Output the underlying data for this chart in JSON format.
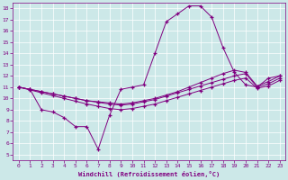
{
  "xlabel": "Windchill (Refroidissement éolien,°C)",
  "bg_color": "#cce8e8",
  "grid_color": "#ffffff",
  "line_color": "#800080",
  "xlim": [
    -0.5,
    23.5
  ],
  "ylim": [
    4.5,
    18.5
  ],
  "xticks": [
    0,
    1,
    2,
    3,
    4,
    5,
    6,
    7,
    8,
    9,
    10,
    11,
    12,
    13,
    14,
    15,
    16,
    17,
    18,
    19,
    20,
    21,
    22,
    23
  ],
  "yticks": [
    5,
    6,
    7,
    8,
    9,
    10,
    11,
    12,
    13,
    14,
    15,
    16,
    17,
    18
  ],
  "loop_x": [
    0,
    1,
    2,
    3,
    4,
    5,
    6,
    7,
    8,
    9,
    10,
    11,
    12,
    13,
    14,
    15,
    16,
    17,
    18,
    19,
    20,
    21,
    22,
    23
  ],
  "loop_y": [
    11,
    10.8,
    9.0,
    8.8,
    8.3,
    7.5,
    7.5,
    5.5,
    8.5,
    10.8,
    11.0,
    11.2,
    14.0,
    16.8,
    17.5,
    18.2,
    18.2,
    17.2,
    14.5,
    12.3,
    11.2,
    11.0,
    11.8,
    12.0
  ],
  "line1_x": [
    0,
    1,
    2,
    3,
    4,
    5,
    6,
    7,
    8,
    9,
    10,
    11,
    12,
    13,
    14,
    15,
    16,
    17,
    18,
    19,
    20,
    21,
    22,
    23
  ],
  "line1_y": [
    11.0,
    10.8,
    10.6,
    10.4,
    10.2,
    10.0,
    9.8,
    9.7,
    9.6,
    9.5,
    9.6,
    9.8,
    10.0,
    10.3,
    10.6,
    11.0,
    11.4,
    11.8,
    12.2,
    12.5,
    12.3,
    11.1,
    11.5,
    12.0
  ],
  "line2_x": [
    0,
    1,
    2,
    3,
    4,
    5,
    6,
    7,
    8,
    9,
    10,
    11,
    12,
    13,
    14,
    15,
    16,
    17,
    18,
    19,
    20,
    21,
    22,
    23
  ],
  "line2_y": [
    11.0,
    10.8,
    10.6,
    10.4,
    10.2,
    10.0,
    9.8,
    9.65,
    9.5,
    9.4,
    9.5,
    9.7,
    9.9,
    10.2,
    10.5,
    10.8,
    11.1,
    11.4,
    11.7,
    12.0,
    12.2,
    11.0,
    11.3,
    11.8
  ],
  "line3_x": [
    0,
    1,
    2,
    3,
    4,
    5,
    6,
    7,
    8,
    9,
    10,
    11,
    12,
    13,
    14,
    15,
    16,
    17,
    18,
    19,
    20,
    21,
    22,
    23
  ],
  "line3_y": [
    11.0,
    10.75,
    10.5,
    10.25,
    10.0,
    9.75,
    9.5,
    9.3,
    9.1,
    9.0,
    9.1,
    9.3,
    9.5,
    9.8,
    10.1,
    10.4,
    10.7,
    11.0,
    11.3,
    11.6,
    11.8,
    10.9,
    11.1,
    11.6
  ]
}
